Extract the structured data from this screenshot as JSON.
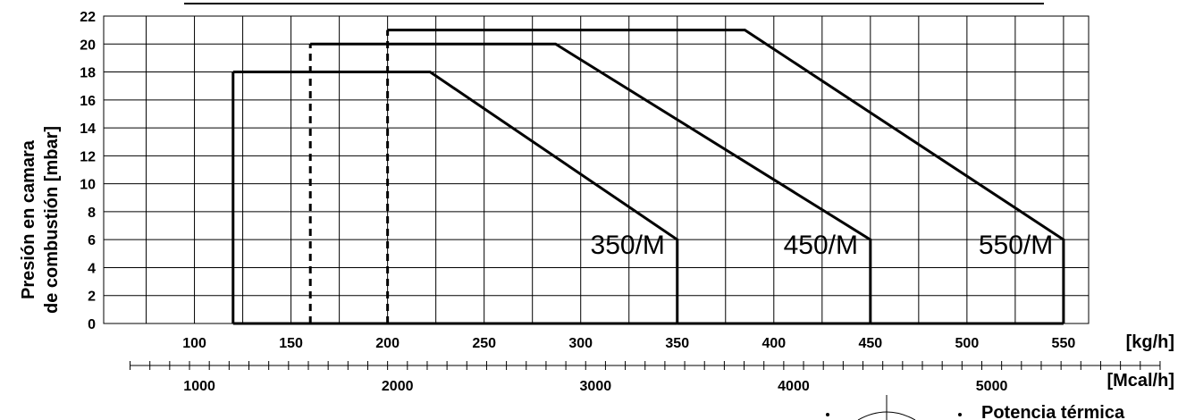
{
  "chart_data": {
    "type": "line",
    "title": "",
    "ylabel_lines": [
      "Presión en camara",
      "de combustión [mbar]"
    ],
    "x_unit": "[kg/h]",
    "x2_unit": "[Mcal/h]",
    "footer_label": "Potencia térmica",
    "xlim": [
      53,
      563
    ],
    "ylim": [
      0,
      22
    ],
    "x_ticks": [
      100,
      150,
      200,
      250,
      300,
      350,
      400,
      450,
      500,
      550
    ],
    "y_ticks": [
      0,
      2,
      4,
      6,
      8,
      10,
      12,
      14,
      16,
      18,
      20,
      22
    ],
    "x2_ticks": [
      1000,
      2000,
      3000,
      4000,
      5000
    ],
    "x2_per_x": 9.75,
    "grid": true,
    "series": [
      {
        "name": "350/M",
        "label_pos": [
          305,
          5
        ],
        "points": [
          [
            120,
            0
          ],
          [
            120,
            18
          ],
          [
            222,
            18
          ],
          [
            350,
            6
          ],
          [
            350,
            0
          ]
        ],
        "closing_x": 120,
        "dashed_start": false
      },
      {
        "name": "450/M",
        "label_pos": [
          405,
          5
        ],
        "points": [
          [
            160,
            0
          ],
          [
            160,
            20
          ],
          [
            287,
            20
          ],
          [
            450,
            6
          ],
          [
            450,
            0
          ]
        ],
        "closing_x": 350,
        "dashed_start": true
      },
      {
        "name": "550/M",
        "label_pos": [
          506,
          5
        ],
        "points": [
          [
            200,
            0
          ],
          [
            200,
            21
          ],
          [
            385,
            21
          ],
          [
            550,
            6
          ],
          [
            550,
            0
          ]
        ],
        "closing_x": 450,
        "dashed_start": true
      }
    ]
  }
}
